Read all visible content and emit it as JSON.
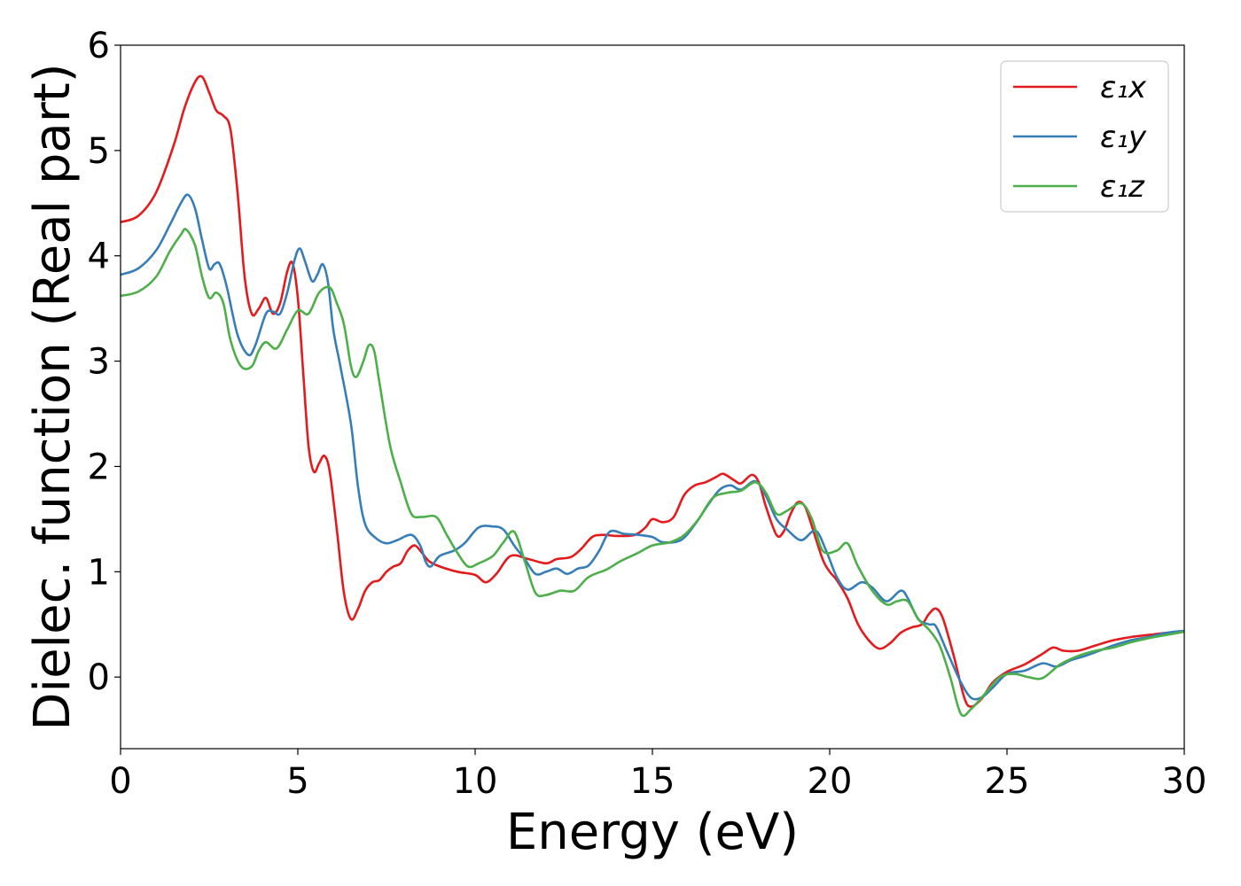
{
  "chart_data": {
    "type": "line",
    "xlabel": "Energy (eV)",
    "ylabel": "Dielec. function (Real part)",
    "xlim": [
      0,
      30
    ],
    "ylim": [
      -0.68,
      6
    ],
    "xticks": [
      "0",
      "5",
      "10",
      "15",
      "20",
      "25",
      "30"
    ],
    "yticks": [
      "0",
      "1",
      "2",
      "3",
      "4",
      "5",
      "6"
    ],
    "grid": false,
    "legend_position": "top-right",
    "series": [
      {
        "name": "ε₁x",
        "color": "#e41a1c",
        "points": [
          [
            0,
            4.32
          ],
          [
            0.5,
            4.38
          ],
          [
            1,
            4.6
          ],
          [
            1.5,
            5.05
          ],
          [
            1.8,
            5.4
          ],
          [
            2.1,
            5.65
          ],
          [
            2.3,
            5.7
          ],
          [
            2.5,
            5.55
          ],
          [
            2.7,
            5.38
          ],
          [
            2.9,
            5.33
          ],
          [
            3.1,
            5.2
          ],
          [
            3.3,
            4.6
          ],
          [
            3.5,
            3.8
          ],
          [
            3.7,
            3.45
          ],
          [
            3.9,
            3.5
          ],
          [
            4.1,
            3.6
          ],
          [
            4.3,
            3.45
          ],
          [
            4.5,
            3.55
          ],
          [
            4.7,
            3.85
          ],
          [
            4.85,
            3.93
          ],
          [
            5.0,
            3.6
          ],
          [
            5.15,
            2.9
          ],
          [
            5.3,
            2.2
          ],
          [
            5.45,
            1.95
          ],
          [
            5.6,
            2.03
          ],
          [
            5.75,
            2.1
          ],
          [
            5.9,
            1.95
          ],
          [
            6.1,
            1.4
          ],
          [
            6.3,
            0.8
          ],
          [
            6.5,
            0.55
          ],
          [
            6.7,
            0.65
          ],
          [
            6.9,
            0.82
          ],
          [
            7.1,
            0.9
          ],
          [
            7.3,
            0.92
          ],
          [
            7.5,
            1.0
          ],
          [
            7.7,
            1.05
          ],
          [
            7.9,
            1.08
          ],
          [
            8.1,
            1.2
          ],
          [
            8.3,
            1.25
          ],
          [
            8.5,
            1.18
          ],
          [
            8.7,
            1.1
          ],
          [
            9,
            1.05
          ],
          [
            9.5,
            1.0
          ],
          [
            10,
            0.97
          ],
          [
            10.3,
            0.9
          ],
          [
            10.6,
            0.98
          ],
          [
            11,
            1.15
          ],
          [
            11.5,
            1.12
          ],
          [
            12,
            1.08
          ],
          [
            12.3,
            1.12
          ],
          [
            12.7,
            1.14
          ],
          [
            13,
            1.22
          ],
          [
            13.3,
            1.33
          ],
          [
            13.6,
            1.35
          ],
          [
            14,
            1.34
          ],
          [
            14.5,
            1.35
          ],
          [
            14.8,
            1.42
          ],
          [
            15,
            1.5
          ],
          [
            15.3,
            1.47
          ],
          [
            15.6,
            1.52
          ],
          [
            15.9,
            1.73
          ],
          [
            16.2,
            1.82
          ],
          [
            16.5,
            1.85
          ],
          [
            16.8,
            1.9
          ],
          [
            17,
            1.93
          ],
          [
            17.3,
            1.87
          ],
          [
            17.5,
            1.84
          ],
          [
            17.8,
            1.92
          ],
          [
            18,
            1.85
          ],
          [
            18.2,
            1.62
          ],
          [
            18.5,
            1.35
          ],
          [
            18.7,
            1.38
          ],
          [
            18.9,
            1.55
          ],
          [
            19.1,
            1.66
          ],
          [
            19.3,
            1.62
          ],
          [
            19.5,
            1.43
          ],
          [
            19.8,
            1.12
          ],
          [
            20,
            1.0
          ],
          [
            20.2,
            0.92
          ],
          [
            20.5,
            0.75
          ],
          [
            20.8,
            0.5
          ],
          [
            21.1,
            0.35
          ],
          [
            21.4,
            0.27
          ],
          [
            21.7,
            0.32
          ],
          [
            22,
            0.42
          ],
          [
            22.3,
            0.47
          ],
          [
            22.6,
            0.5
          ],
          [
            22.8,
            0.6
          ],
          [
            23,
            0.65
          ],
          [
            23.2,
            0.55
          ],
          [
            23.5,
            0.2
          ],
          [
            23.8,
            -0.2
          ],
          [
            24,
            -0.28
          ],
          [
            24.3,
            -0.2
          ],
          [
            24.6,
            -0.05
          ],
          [
            25,
            0.05
          ],
          [
            25.5,
            0.12
          ],
          [
            26,
            0.22
          ],
          [
            26.3,
            0.28
          ],
          [
            26.6,
            0.25
          ],
          [
            27,
            0.25
          ],
          [
            27.5,
            0.3
          ],
          [
            28,
            0.35
          ],
          [
            28.5,
            0.38
          ],
          [
            29,
            0.4
          ],
          [
            29.5,
            0.42
          ],
          [
            30,
            0.43
          ]
        ]
      },
      {
        "name": "ε₁y",
        "color": "#377eb8",
        "points": [
          [
            0,
            3.82
          ],
          [
            0.5,
            3.88
          ],
          [
            1,
            4.05
          ],
          [
            1.4,
            4.3
          ],
          [
            1.7,
            4.5
          ],
          [
            1.9,
            4.58
          ],
          [
            2.1,
            4.45
          ],
          [
            2.3,
            4.15
          ],
          [
            2.5,
            3.88
          ],
          [
            2.65,
            3.92
          ],
          [
            2.8,
            3.92
          ],
          [
            3.0,
            3.7
          ],
          [
            3.3,
            3.25
          ],
          [
            3.6,
            3.06
          ],
          [
            3.8,
            3.15
          ],
          [
            4.1,
            3.45
          ],
          [
            4.3,
            3.47
          ],
          [
            4.5,
            3.45
          ],
          [
            4.7,
            3.65
          ],
          [
            4.9,
            3.95
          ],
          [
            5.05,
            4.07
          ],
          [
            5.2,
            3.95
          ],
          [
            5.4,
            3.76
          ],
          [
            5.55,
            3.82
          ],
          [
            5.7,
            3.92
          ],
          [
            5.85,
            3.75
          ],
          [
            6.0,
            3.3
          ],
          [
            6.2,
            2.95
          ],
          [
            6.5,
            2.4
          ],
          [
            6.7,
            1.8
          ],
          [
            6.9,
            1.45
          ],
          [
            7.2,
            1.32
          ],
          [
            7.5,
            1.27
          ],
          [
            7.8,
            1.3
          ],
          [
            8.2,
            1.35
          ],
          [
            8.45,
            1.25
          ],
          [
            8.6,
            1.1
          ],
          [
            8.75,
            1.05
          ],
          [
            9,
            1.15
          ],
          [
            9.4,
            1.2
          ],
          [
            9.7,
            1.27
          ],
          [
            10.1,
            1.42
          ],
          [
            10.5,
            1.43
          ],
          [
            10.8,
            1.4
          ],
          [
            11.1,
            1.25
          ],
          [
            11.4,
            1.12
          ],
          [
            11.7,
            0.98
          ],
          [
            12,
            1.0
          ],
          [
            12.3,
            1.03
          ],
          [
            12.6,
            0.98
          ],
          [
            12.9,
            1.03
          ],
          [
            13.2,
            1.06
          ],
          [
            13.5,
            1.2
          ],
          [
            13.8,
            1.38
          ],
          [
            14.2,
            1.36
          ],
          [
            14.6,
            1.35
          ],
          [
            15,
            1.33
          ],
          [
            15.3,
            1.28
          ],
          [
            15.8,
            1.3
          ],
          [
            16.2,
            1.45
          ],
          [
            16.6,
            1.65
          ],
          [
            16.9,
            1.78
          ],
          [
            17.2,
            1.82
          ],
          [
            17.5,
            1.78
          ],
          [
            17.9,
            1.86
          ],
          [
            18.2,
            1.72
          ],
          [
            18.5,
            1.5
          ],
          [
            18.8,
            1.4
          ],
          [
            19.2,
            1.3
          ],
          [
            19.6,
            1.39
          ],
          [
            19.9,
            1.2
          ],
          [
            20.2,
            0.95
          ],
          [
            20.5,
            0.83
          ],
          [
            20.9,
            0.9
          ],
          [
            21.2,
            0.85
          ],
          [
            21.6,
            0.72
          ],
          [
            22,
            0.82
          ],
          [
            22.2,
            0.75
          ],
          [
            22.5,
            0.55
          ],
          [
            22.8,
            0.5
          ],
          [
            23.0,
            0.48
          ],
          [
            23.3,
            0.25
          ],
          [
            23.7,
            -0.05
          ],
          [
            24.0,
            -0.2
          ],
          [
            24.3,
            -0.19
          ],
          [
            24.6,
            -0.1
          ],
          [
            25,
            0.03
          ],
          [
            25.5,
            0.06
          ],
          [
            26,
            0.13
          ],
          [
            26.4,
            0.1
          ],
          [
            26.8,
            0.16
          ],
          [
            27.2,
            0.2
          ],
          [
            27.6,
            0.25
          ],
          [
            28,
            0.3
          ],
          [
            28.5,
            0.35
          ],
          [
            29,
            0.38
          ],
          [
            29.5,
            0.42
          ],
          [
            30,
            0.44
          ]
        ]
      },
      {
        "name": "ε₁z",
        "color": "#4daf4a",
        "points": [
          [
            0,
            3.62
          ],
          [
            0.5,
            3.66
          ],
          [
            1,
            3.8
          ],
          [
            1.4,
            4.05
          ],
          [
            1.7,
            4.2
          ],
          [
            1.85,
            4.25
          ],
          [
            2.1,
            4.1
          ],
          [
            2.3,
            3.8
          ],
          [
            2.5,
            3.6
          ],
          [
            2.7,
            3.65
          ],
          [
            2.9,
            3.55
          ],
          [
            3.1,
            3.2
          ],
          [
            3.4,
            2.95
          ],
          [
            3.7,
            2.95
          ],
          [
            3.9,
            3.1
          ],
          [
            4.1,
            3.18
          ],
          [
            4.4,
            3.12
          ],
          [
            4.7,
            3.3
          ],
          [
            5.0,
            3.48
          ],
          [
            5.3,
            3.45
          ],
          [
            5.6,
            3.65
          ],
          [
            5.9,
            3.7
          ],
          [
            6.1,
            3.55
          ],
          [
            6.3,
            3.35
          ],
          [
            6.5,
            2.95
          ],
          [
            6.65,
            2.85
          ],
          [
            6.85,
            3.0
          ],
          [
            7.0,
            3.15
          ],
          [
            7.15,
            3.1
          ],
          [
            7.3,
            2.8
          ],
          [
            7.6,
            2.2
          ],
          [
            7.9,
            1.85
          ],
          [
            8.2,
            1.55
          ],
          [
            8.5,
            1.52
          ],
          [
            8.9,
            1.52
          ],
          [
            9.2,
            1.35
          ],
          [
            9.5,
            1.18
          ],
          [
            9.8,
            1.05
          ],
          [
            10.1,
            1.08
          ],
          [
            10.5,
            1.15
          ],
          [
            10.8,
            1.28
          ],
          [
            11.1,
            1.38
          ],
          [
            11.4,
            1.1
          ],
          [
            11.7,
            0.8
          ],
          [
            12,
            0.78
          ],
          [
            12.4,
            0.82
          ],
          [
            12.8,
            0.82
          ],
          [
            13.2,
            0.95
          ],
          [
            13.7,
            1.02
          ],
          [
            14.1,
            1.1
          ],
          [
            14.6,
            1.18
          ],
          [
            15,
            1.25
          ],
          [
            15.5,
            1.28
          ],
          [
            15.9,
            1.35
          ],
          [
            16.3,
            1.5
          ],
          [
            16.7,
            1.7
          ],
          [
            17.1,
            1.75
          ],
          [
            17.5,
            1.77
          ],
          [
            17.9,
            1.85
          ],
          [
            18.2,
            1.75
          ],
          [
            18.5,
            1.55
          ],
          [
            18.8,
            1.58
          ],
          [
            19.2,
            1.65
          ],
          [
            19.5,
            1.5
          ],
          [
            19.8,
            1.2
          ],
          [
            20.2,
            1.2
          ],
          [
            20.5,
            1.27
          ],
          [
            20.8,
            1.05
          ],
          [
            21.2,
            0.82
          ],
          [
            21.6,
            0.69
          ],
          [
            21.9,
            0.72
          ],
          [
            22.2,
            0.72
          ],
          [
            22.5,
            0.55
          ],
          [
            22.8,
            0.45
          ],
          [
            23.1,
            0.3
          ],
          [
            23.4,
            0.0
          ],
          [
            23.7,
            -0.35
          ],
          [
            24.0,
            -0.3
          ],
          [
            24.4,
            -0.15
          ],
          [
            24.8,
            0.0
          ],
          [
            25.2,
            0.03
          ],
          [
            25.6,
            0.0
          ],
          [
            26.0,
            -0.01
          ],
          [
            26.5,
            0.12
          ],
          [
            27,
            0.2
          ],
          [
            27.5,
            0.25
          ],
          [
            28,
            0.28
          ],
          [
            28.5,
            0.33
          ],
          [
            29,
            0.37
          ],
          [
            29.5,
            0.4
          ],
          [
            30,
            0.43
          ]
        ]
      }
    ]
  }
}
